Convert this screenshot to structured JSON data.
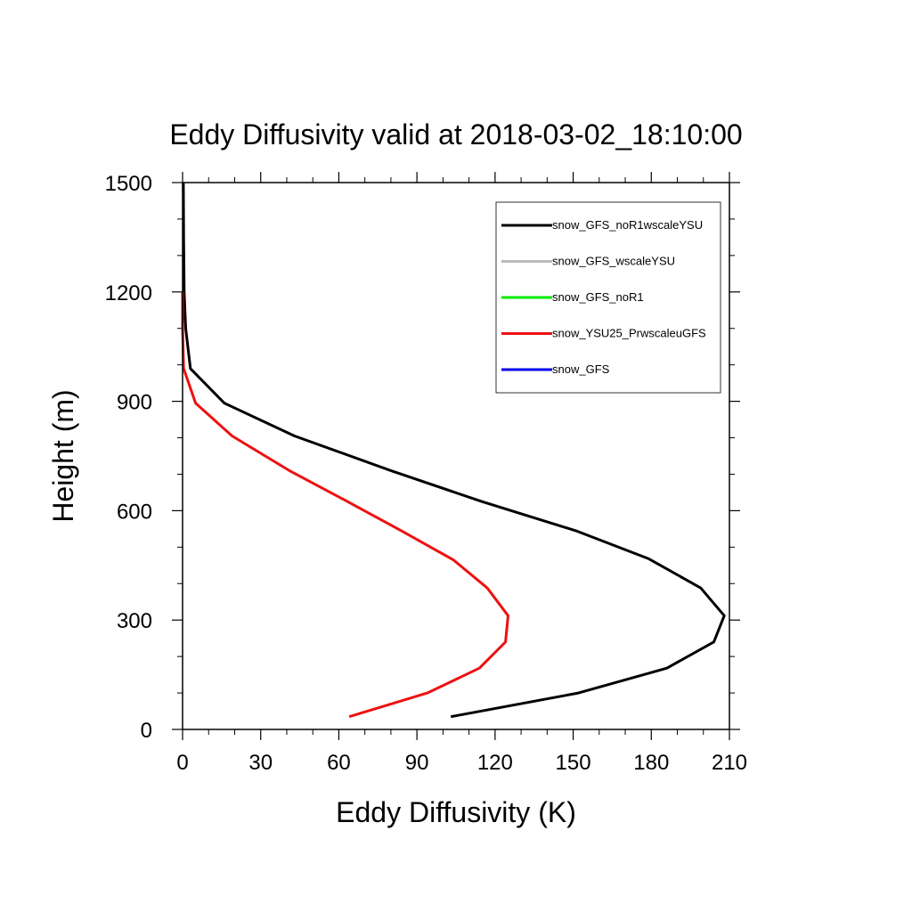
{
  "chart_data": {
    "type": "line",
    "title": "Eddy Diffusivity valid at 2018-03-02_18:10:00",
    "xlabel": "Eddy Diffusivity (K)",
    "ylabel": "Height (m)",
    "xlim": [
      0,
      210
    ],
    "ylim": [
      0,
      1500
    ],
    "xticks": [
      "0",
      "30",
      "60",
      "90",
      "120",
      "150",
      "180",
      "210"
    ],
    "yticks": [
      "0",
      "300",
      "600",
      "900",
      "1200",
      "1500"
    ],
    "legend_position": "top-right",
    "series": [
      {
        "name": "snow_GFS_noR1wscaleYSU",
        "color": "#000000",
        "x": [
          103,
          152,
          186,
          204,
          208,
          199,
          179,
          151,
          115,
          80,
          43,
          16,
          3,
          1.2,
          0.6,
          0.4,
          0.3
        ],
        "y": [
          35,
          100,
          168,
          240,
          312,
          388,
          468,
          545,
          625,
          710,
          805,
          895,
          990,
          1100,
          1200,
          1350,
          1500
        ]
      },
      {
        "name": "snow_GFS_wscaleYSU",
        "color": "#bbbbbb",
        "x": [],
        "y": []
      },
      {
        "name": "snow_GFS_noR1",
        "color": "#00ee00",
        "x": [],
        "y": []
      },
      {
        "name": "snow_YSU25_PrwscaleuGFS",
        "color": "#ee1111",
        "x": [
          64,
          94,
          114,
          124,
          125,
          117,
          104,
          84,
          62,
          41,
          19,
          5,
          0.4,
          0,
          0
        ],
        "y": [
          35,
          100,
          168,
          240,
          312,
          388,
          465,
          545,
          630,
          710,
          805,
          895,
          990,
          1100,
          1200
        ]
      },
      {
        "name": "snow_GFS",
        "color": "#0000ee",
        "x": [],
        "y": []
      }
    ]
  }
}
